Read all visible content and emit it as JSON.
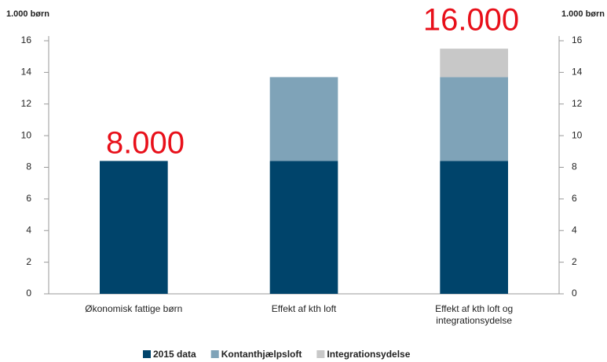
{
  "chart_data": {
    "type": "bar",
    "stacked": true,
    "y_label": "1.000 børn",
    "y2_label": "1.000 børn",
    "categories": [
      "Økonomisk fattige børn",
      "Effekt af kth loft",
      "Effekt af kth loft og integrationsydelse"
    ],
    "series": [
      {
        "name": "2015 data",
        "color": "#00446b",
        "values": [
          8.4,
          8.4,
          8.4
        ]
      },
      {
        "name": "Kontanthjælpsloft",
        "color": "#7fa3b8",
        "values": [
          0,
          5.3,
          5.3
        ]
      },
      {
        "name": "Integrationsydelse",
        "color": "#c8c8c8",
        "values": [
          0,
          0,
          1.8
        ]
      }
    ],
    "ylim": [
      0,
      16
    ],
    "yticks": [
      0,
      2,
      4,
      6,
      8,
      10,
      12,
      14,
      16
    ],
    "y2lim": [
      0,
      16
    ],
    "y2ticks": [
      0,
      2,
      4,
      6,
      8,
      10,
      12,
      14,
      16
    ],
    "annotations": [
      "8.000",
      "16.000"
    ],
    "annotation_color": "#e8101a",
    "grid": false,
    "legend": "bottom"
  }
}
